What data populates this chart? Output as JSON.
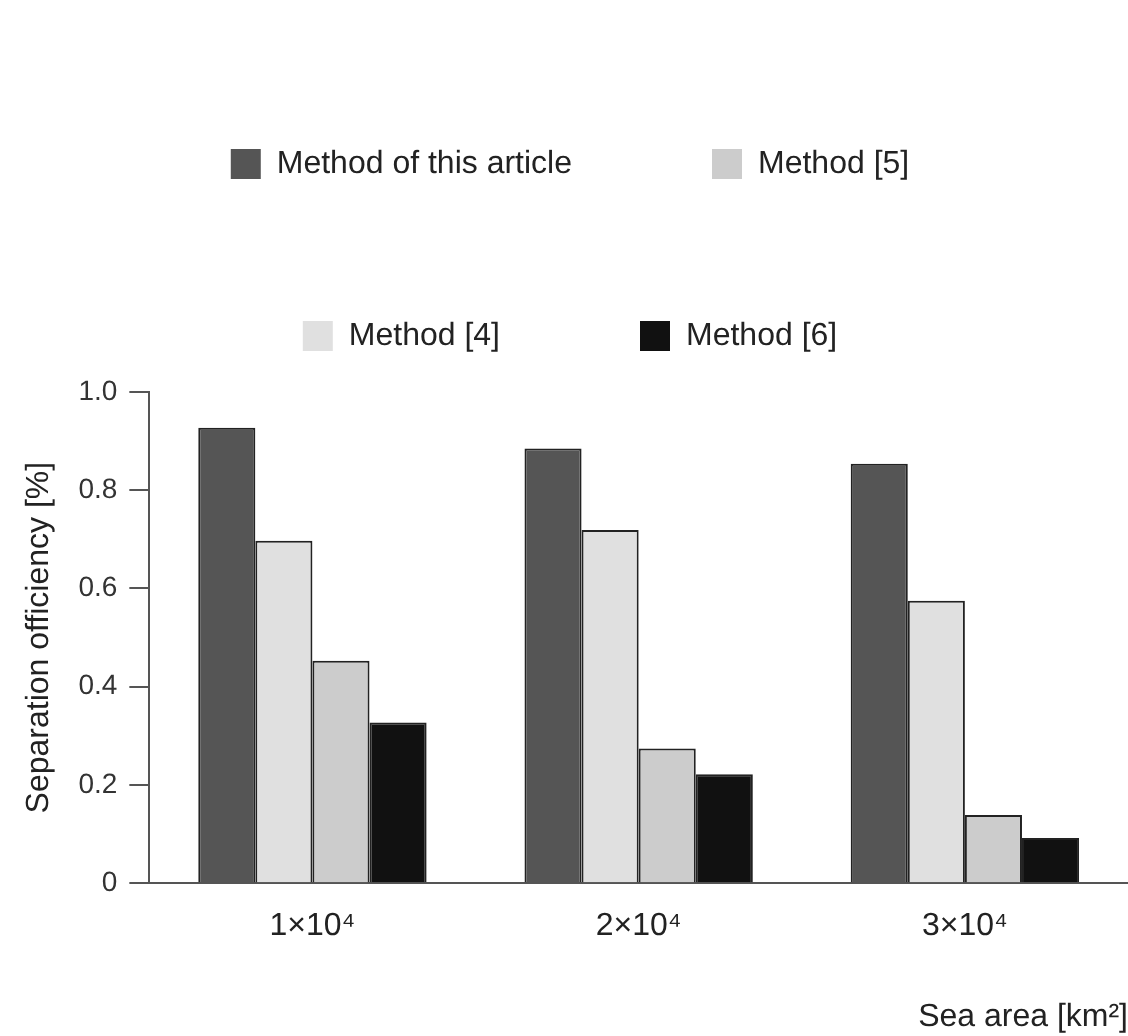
{
  "chart_data": {
    "type": "bar",
    "xlabel": "Sea area [km²]",
    "ylabel": "Separation officiency [%]",
    "categories": [
      "1×10⁴",
      "2×10⁴",
      "3×10⁴"
    ],
    "series": [
      {
        "name": "Method of this article",
        "color": "#555555",
        "values": [
          0.927,
          0.885,
          0.854
        ]
      },
      {
        "name": "Method [4]",
        "color": "#e0e0e0",
        "values": [
          0.697,
          0.719,
          0.575
        ]
      },
      {
        "name": "Method [5]",
        "color": "#cccccc",
        "values": [
          0.453,
          0.274,
          0.139
        ]
      },
      {
        "name": "Method [6]",
        "color": "#111111",
        "values": [
          0.327,
          0.222,
          0.092
        ]
      }
    ],
    "ylim": [
      0,
      1
    ],
    "yticks": [
      0,
      0.2,
      0.4,
      0.6,
      0.8,
      {
        "value": 1,
        "label": "1.0"
      }
    ],
    "grid": false,
    "legend": "top"
  }
}
